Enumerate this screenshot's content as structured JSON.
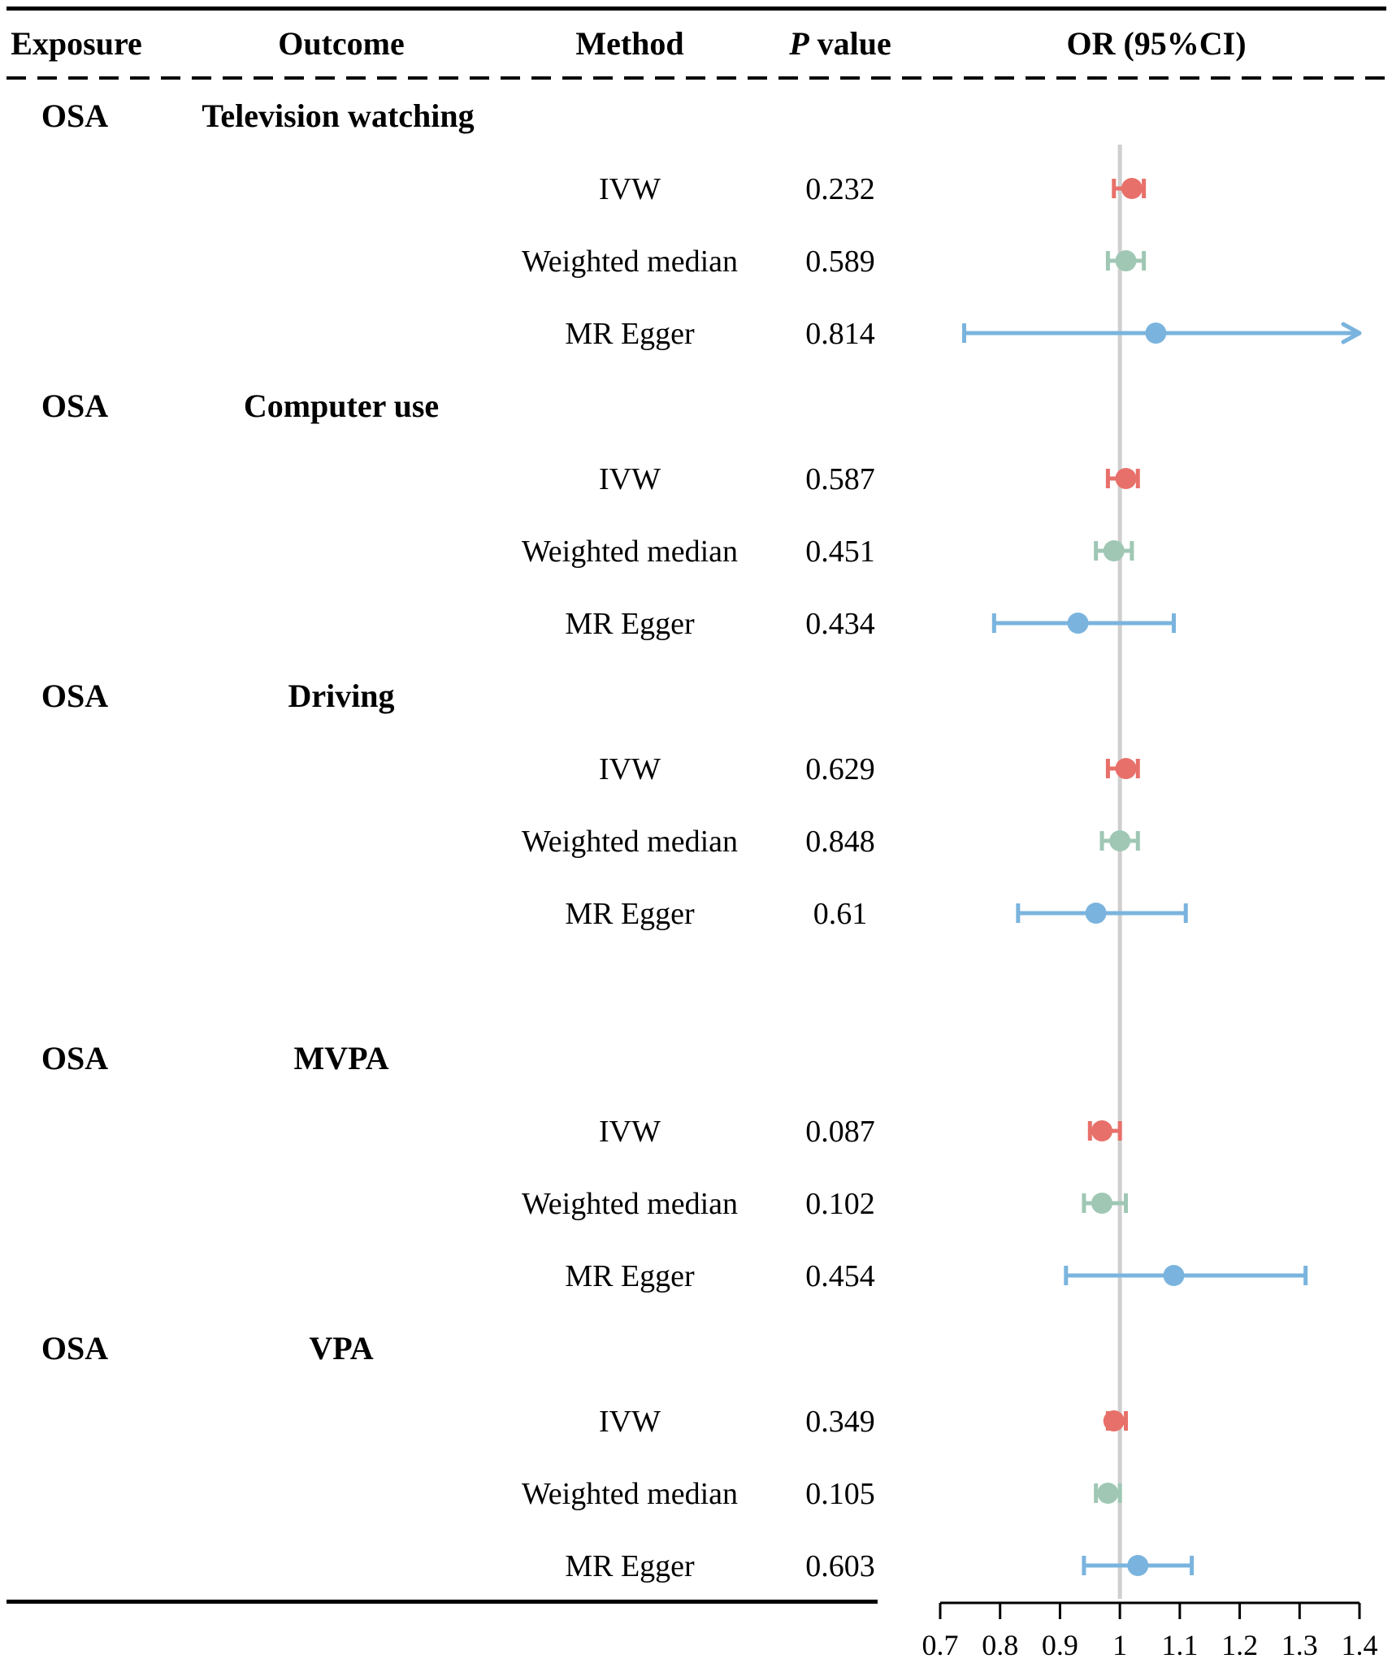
{
  "headers": {
    "exposure": "Exposure",
    "outcome": "Outcome",
    "method": "Method",
    "p_italic": "P",
    "p_rest": " value",
    "or": "OR (95%CI)"
  },
  "colors": {
    "IVW": "#e8706a",
    "Weighted median": "#9fc7b4",
    "MR Egger": "#7ab4de",
    "reference_line": "#cfcfcf"
  },
  "groups": [
    {
      "exposure": "OSA",
      "outcome": "Television watching",
      "rows": [
        {
          "method": "IVW",
          "p": "0.232"
        },
        {
          "method": "Weighted median",
          "p": "0.589"
        },
        {
          "method": "MR Egger",
          "p": "0.814"
        }
      ]
    },
    {
      "exposure": "OSA",
      "outcome": "Computer use",
      "rows": [
        {
          "method": "IVW",
          "p": "0.587"
        },
        {
          "method": "Weighted median",
          "p": "0.451"
        },
        {
          "method": "MR Egger",
          "p": "0.434"
        }
      ]
    },
    {
      "exposure": "OSA",
      "outcome": "Driving",
      "rows": [
        {
          "method": "IVW",
          "p": "0.629"
        },
        {
          "method": "Weighted median",
          "p": "0.848"
        },
        {
          "method": "MR Egger",
          "p": "0.61"
        }
      ]
    },
    {
      "exposure": "OSA",
      "outcome": "MVPA",
      "rows": [
        {
          "method": "IVW",
          "p": "0.087"
        },
        {
          "method": "Weighted median",
          "p": "0.102"
        },
        {
          "method": "MR Egger",
          "p": "0.454"
        }
      ]
    },
    {
      "exposure": "OSA",
      "outcome": "VPA",
      "rows": [
        {
          "method": "IVW",
          "p": "0.349"
        },
        {
          "method": "Weighted median",
          "p": "0.105"
        },
        {
          "method": "MR Egger",
          "p": "0.603"
        }
      ]
    }
  ],
  "chart_data": {
    "type": "forest",
    "title": "OR (95%CI)",
    "xlabel": "",
    "xlim": [
      0.7,
      1.4
    ],
    "xticks": [
      0.7,
      0.8,
      0.9,
      1,
      1.1,
      1.2,
      1.3,
      1.4
    ],
    "xtick_labels": [
      "0.7",
      "0.8",
      "0.9",
      "1",
      "1.1",
      "1.2",
      "1.3",
      "1.4"
    ],
    "reference_value": 1,
    "series": [
      {
        "exposure": "OSA",
        "outcome": "Television watching",
        "method": "IVW",
        "or": 1.02,
        "lower": 0.99,
        "upper": 1.04
      },
      {
        "exposure": "OSA",
        "outcome": "Television watching",
        "method": "Weighted median",
        "or": 1.01,
        "lower": 0.98,
        "upper": 1.04
      },
      {
        "exposure": "OSA",
        "outcome": "Television watching",
        "method": "MR Egger",
        "or": 1.06,
        "lower": 0.74,
        "upper": 1.4,
        "upper_truncated": true
      },
      {
        "exposure": "OSA",
        "outcome": "Computer use",
        "method": "IVW",
        "or": 1.01,
        "lower": 0.98,
        "upper": 1.03
      },
      {
        "exposure": "OSA",
        "outcome": "Computer use",
        "method": "Weighted median",
        "or": 0.99,
        "lower": 0.96,
        "upper": 1.02
      },
      {
        "exposure": "OSA",
        "outcome": "Computer use",
        "method": "MR Egger",
        "or": 0.93,
        "lower": 0.79,
        "upper": 1.09
      },
      {
        "exposure": "OSA",
        "outcome": "Driving",
        "method": "IVW",
        "or": 1.01,
        "lower": 0.98,
        "upper": 1.03
      },
      {
        "exposure": "OSA",
        "outcome": "Driving",
        "method": "Weighted median",
        "or": 1.0,
        "lower": 0.97,
        "upper": 1.03
      },
      {
        "exposure": "OSA",
        "outcome": "Driving",
        "method": "MR Egger",
        "or": 0.96,
        "lower": 0.83,
        "upper": 1.11
      },
      {
        "exposure": "OSA",
        "outcome": "MVPA",
        "method": "IVW",
        "or": 0.97,
        "lower": 0.95,
        "upper": 1.0
      },
      {
        "exposure": "OSA",
        "outcome": "MVPA",
        "method": "Weighted median",
        "or": 0.97,
        "lower": 0.94,
        "upper": 1.01
      },
      {
        "exposure": "OSA",
        "outcome": "MVPA",
        "method": "MR Egger",
        "or": 1.09,
        "lower": 0.91,
        "upper": 1.31
      },
      {
        "exposure": "OSA",
        "outcome": "VPA",
        "method": "IVW",
        "or": 0.99,
        "lower": 0.98,
        "upper": 1.01
      },
      {
        "exposure": "OSA",
        "outcome": "VPA",
        "method": "Weighted median",
        "or": 0.98,
        "lower": 0.96,
        "upper": 1.0
      },
      {
        "exposure": "OSA",
        "outcome": "VPA",
        "method": "MR Egger",
        "or": 1.03,
        "lower": 0.94,
        "upper": 1.12
      }
    ]
  }
}
